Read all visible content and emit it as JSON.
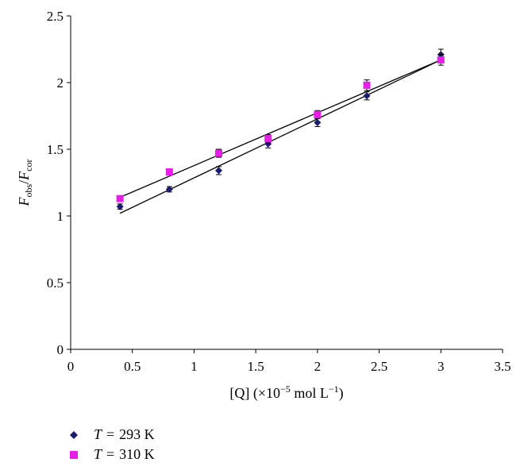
{
  "chart_data": {
    "type": "scatter",
    "xlabel": {
      "main": "[Q] (×10",
      "exp1": "−5",
      "mid": " mol L",
      "exp2": "−1",
      "end": ")"
    },
    "ylabel": {
      "F1": "F",
      "sub1": "obs",
      "slash": "/",
      "F2": "F",
      "sub2": "cor"
    },
    "xlim": [
      0,
      3.5
    ],
    "ylim": [
      0,
      2.5
    ],
    "x_ticks": [
      "0",
      "0.5",
      "1",
      "1.5",
      "2",
      "2.5",
      "3",
      "3.5"
    ],
    "y_ticks": [
      "0",
      "0.5",
      "1",
      "1.5",
      "2",
      "2.5"
    ],
    "grid": false,
    "series": [
      {
        "name": "T = 293 K",
        "label_var": "T",
        "label_eq": "=",
        "label_val": "293 K",
        "marker": "diamond",
        "color": "#1a1a6e",
        "x": [
          0.4,
          0.8,
          1.2,
          1.6,
          2.0,
          2.4,
          3.0
        ],
        "y": [
          1.07,
          1.2,
          1.34,
          1.54,
          1.7,
          1.9,
          2.21
        ],
        "err": [
          0.02,
          0.02,
          0.03,
          0.03,
          0.03,
          0.03,
          0.04
        ],
        "fit": [
          [
            0.4,
            1.02
          ],
          [
            3.0,
            2.17
          ]
        ]
      },
      {
        "name": "T = 310 K",
        "label_var": "T",
        "label_eq": "=",
        "label_val": "310 K",
        "marker": "square",
        "color": "#e61ee6",
        "x": [
          0.4,
          0.8,
          1.2,
          1.6,
          2.0,
          2.4,
          3.0
        ],
        "y": [
          1.13,
          1.33,
          1.47,
          1.58,
          1.76,
          1.98,
          2.17
        ],
        "err": [
          0.02,
          0.02,
          0.03,
          0.03,
          0.03,
          0.04,
          0.04
        ],
        "fit": [
          [
            0.4,
            1.14
          ],
          [
            3.0,
            2.17
          ]
        ]
      }
    ]
  }
}
